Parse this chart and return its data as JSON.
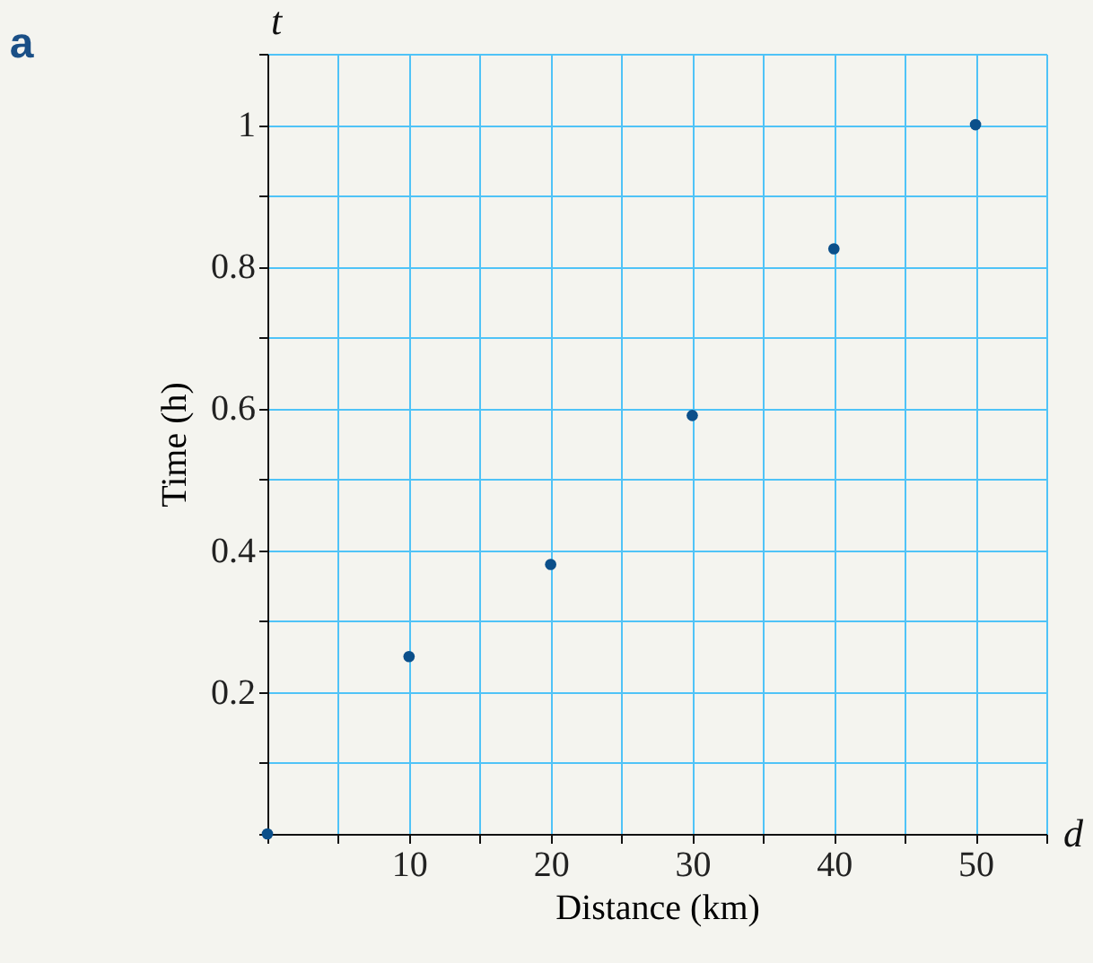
{
  "chart_data": {
    "type": "scatter",
    "xlabel": "Distance (km)",
    "ylabel": "Time (h)",
    "annotations": [
      "a",
      "t",
      "d"
    ],
    "x": [
      0,
      10,
      20,
      30,
      40,
      50
    ],
    "series": [
      {
        "color": "#0b4f8a",
        "values": [
          0,
          0.25,
          0.38,
          0.59,
          0.825,
          1
        ]
      }
    ],
    "xlim": [
      0,
      55
    ],
    "xticks": [
      {
        "value": 0,
        "label": null
      },
      {
        "value": 5,
        "label": null
      },
      10,
      {
        "value": 15,
        "label": null
      },
      20,
      {
        "value": 25,
        "label": null
      },
      30,
      {
        "value": 35,
        "label": null
      },
      40,
      {
        "value": 45,
        "label": null
      },
      50,
      {
        "value": 55,
        "label": null
      }
    ],
    "ylim": [
      0,
      1.1
    ],
    "yticks": [
      {
        "value": 0,
        "label": null
      },
      {
        "value": 0.1,
        "label": null
      },
      0.2,
      {
        "value": 0.3,
        "label": null
      },
      0.4,
      {
        "value": 0.5,
        "label": null
      },
      0.6,
      {
        "value": 0.7,
        "label": null
      },
      0.8,
      {
        "value": 0.9,
        "label": null
      },
      1,
      {
        "value": 1.1,
        "label": null
      }
    ],
    "grid": true,
    "marker": "circle"
  }
}
